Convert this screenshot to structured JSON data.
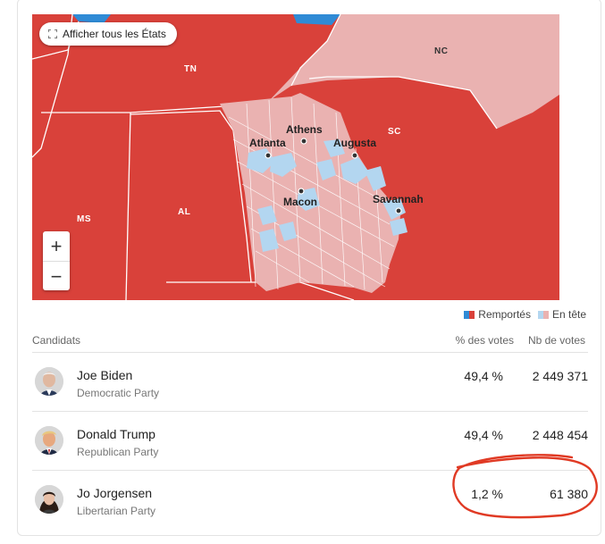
{
  "map": {
    "show_all_label": "Afficher tous les États",
    "zoom_in_label": "+",
    "zoom_out_label": "−",
    "state_labels": {
      "tn": "TN",
      "nc": "NC",
      "sc": "SC",
      "ms": "MS",
      "al": "AL"
    },
    "cities": {
      "atlanta": "Atlanta",
      "athens": "Athens",
      "augusta": "Augusta",
      "macon": "Macon",
      "savannah": "Savannah"
    },
    "colors": {
      "rep_won": "#d9413a",
      "rep_leading": "#eab2b1",
      "dem_won": "#2f8bd6",
      "dem_leading": "#b3d6f0"
    }
  },
  "legend": {
    "won_label": "Remportés",
    "leading_label": "En tête"
  },
  "table": {
    "headers": {
      "candidates": "Candidats",
      "percent": "% des votes",
      "votes": "Nb de votes"
    },
    "rows": [
      {
        "name": "Joe Biden",
        "party": "Democratic Party",
        "percent": "49,4 %",
        "votes": "2 449 371"
      },
      {
        "name": "Donald Trump",
        "party": "Republican Party",
        "percent": "49,4 %",
        "votes": "2 448 454"
      },
      {
        "name": "Jo Jorgensen",
        "party": "Libertarian Party",
        "percent": "1,2 %",
        "votes": "61 380"
      }
    ]
  }
}
